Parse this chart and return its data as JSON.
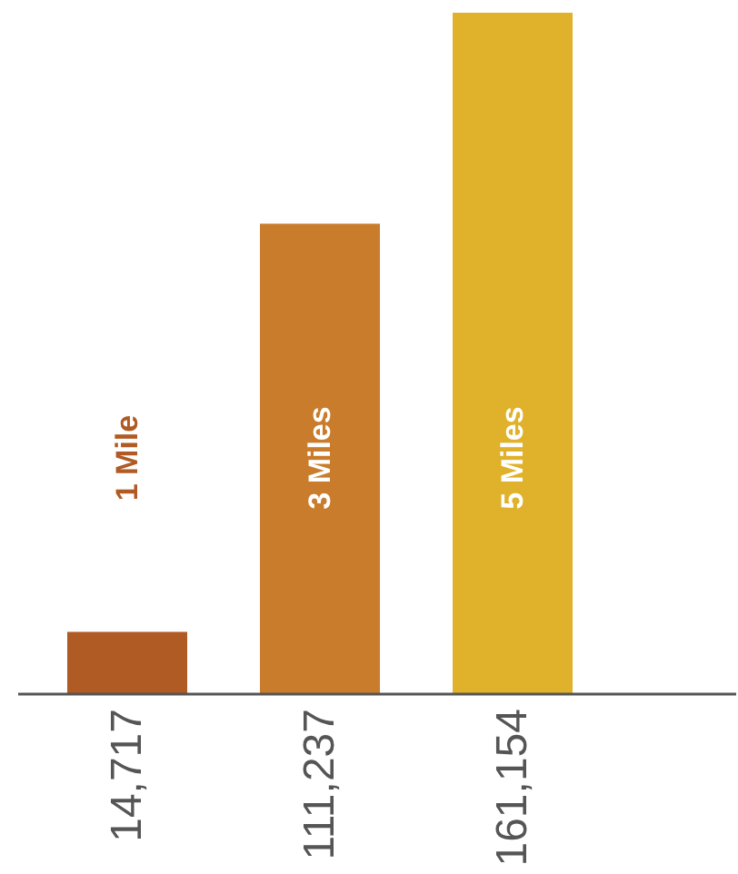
{
  "chart_data": {
    "type": "bar",
    "categories": [
      "1 Mile",
      "3 Miles",
      "5 Miles"
    ],
    "values": [
      14717,
      111237,
      161154
    ],
    "colors": [
      "#b05a24",
      "#c97d2c",
      "#e0b12a"
    ],
    "value_labels": [
      "14,717",
      "111,237",
      "161,154"
    ]
  }
}
